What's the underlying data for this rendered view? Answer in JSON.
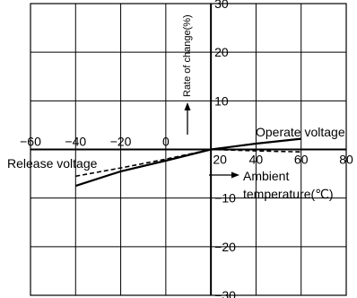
{
  "chart_data": {
    "type": "line",
    "x_axis": {
      "label_line1": "Ambient",
      "label_line2": "temperature(℃)",
      "ticks": [
        -60,
        -40,
        -20,
        0,
        20,
        40,
        60,
        80
      ],
      "range": [
        -60,
        80
      ]
    },
    "y_axis": {
      "label": "Rate of change(%)",
      "ticks": [
        30,
        20,
        10,
        -10,
        -20,
        -30
      ],
      "range": [
        -30,
        30
      ]
    },
    "grid": true,
    "series": [
      {
        "name": "Operate voltage",
        "style": "solid",
        "x": [
          -40,
          -20,
          0,
          20,
          40,
          60
        ],
        "y": [
          -7.5,
          -4.5,
          -2.3,
          0,
          1.2,
          2.2
        ]
      },
      {
        "name": "Release voltage",
        "style": "dashed",
        "x": [
          -40,
          -20,
          0,
          20,
          40,
          60
        ],
        "y": [
          -5.5,
          -3.8,
          -2.0,
          0,
          -0.3,
          -0.5
        ]
      }
    ]
  }
}
